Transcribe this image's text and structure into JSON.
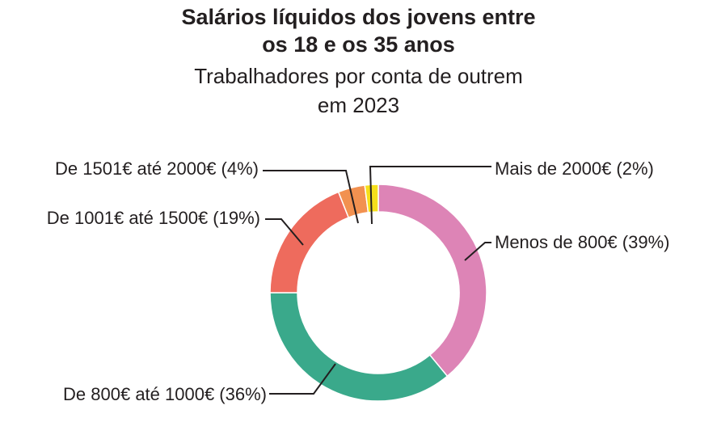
{
  "title_line1": "Salários líquidos dos jovens entre",
  "title_line2": "os 18 e os 35 anos",
  "subtitle_line1": "Trabalhadores por conta de outrem",
  "subtitle_line2": "em 2023",
  "chart_data": {
    "type": "pie",
    "style": "donut",
    "title": "Salários líquidos dos jovens entre os 18 e os 35 anos",
    "subtitle": "Trabalhadores por conta de outrem em 2023",
    "unit": "%",
    "slices": [
      {
        "label": "Menos de 800€ (39%)",
        "category": "Menos de 800€",
        "value": 39,
        "color": "#dd84b6"
      },
      {
        "label": "De 800€ até 1000€ (36%)",
        "category": "De 800€ até 1000€",
        "value": 36,
        "color": "#3aa98b"
      },
      {
        "label": "De 1001€ até 1500€ (19%)",
        "category": "De 1001€ até 1500€",
        "value": 19,
        "color": "#ee6b5d"
      },
      {
        "label": "De 1501€ até 2000€ (4%)",
        "category": "De 1501€ até 2000€",
        "value": 4,
        "color": "#f29150"
      },
      {
        "label": "Mais de 2000€ (2%)",
        "category": "Mais de 2000€",
        "value": 2,
        "color": "#f6df1b"
      }
    ]
  }
}
